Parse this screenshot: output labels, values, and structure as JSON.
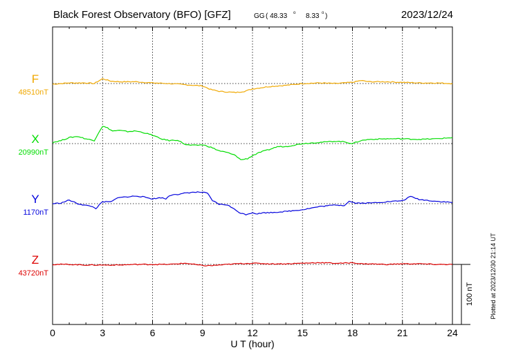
{
  "chart_data": {
    "type": "line",
    "title": "Black Forest Observatory (BFO)  [GFZ]",
    "coord_prefix": "GG",
    "coord_lat": "( 48.33",
    "coord_lon": "8.33",
    "degree_symbol": "o",
    "coord_close": ")",
    "date": "2023/12/24",
    "xlabel": "U T (hour)",
    "xlim": [
      0,
      24
    ],
    "xticks": [
      0,
      3,
      6,
      9,
      12,
      15,
      18,
      21,
      24
    ],
    "xtick_labels": [
      "0",
      "3",
      "6",
      "9",
      "12",
      "15",
      "18",
      "21",
      "24"
    ],
    "grid": true,
    "scale_bar_label": "100 nT",
    "scale_bar_nT": 100,
    "plotted_note": "Plotted at 2023/12/30 21:14 UT",
    "series": [
      {
        "name": "F",
        "baseline_label": "48510nT",
        "baseline_nT": 48510,
        "color": "#f0a800",
        "x": [
          0,
          1,
          2,
          2.5,
          3,
          3.5,
          4,
          5,
          6,
          7,
          8,
          8.5,
          9,
          9.5,
          10,
          10.5,
          11,
          11.5,
          12,
          13,
          14,
          15,
          16,
          17,
          18,
          18.5,
          19,
          20,
          21,
          22,
          23,
          24
        ],
        "y": [
          -1,
          1,
          1,
          0,
          8,
          4,
          3,
          3,
          1,
          0,
          -2,
          -3,
          -4,
          -10,
          -13,
          -14,
          -15,
          -13,
          -9,
          -5,
          -3,
          0,
          1,
          0,
          2,
          5,
          3,
          3,
          2,
          1,
          1,
          0
        ]
      },
      {
        "name": "X",
        "baseline_label": "20990nT",
        "baseline_nT": 20990,
        "color": "#00dd00",
        "x": [
          0,
          0.5,
          1,
          1.5,
          2,
          2.5,
          2.8,
          3,
          3.3,
          3.6,
          4,
          4.5,
          5,
          5.5,
          6,
          6.5,
          7,
          7.5,
          8,
          8.5,
          9,
          9.5,
          10,
          10.5,
          11,
          11.3,
          11.7,
          12,
          12.5,
          13,
          13.5,
          14,
          15,
          16,
          17,
          17.5,
          18,
          18.5,
          19,
          20,
          21,
          22,
          23,
          24
        ],
        "y": [
          2,
          5,
          10,
          12,
          8,
          5,
          20,
          29,
          26,
          21,
          22,
          20,
          21,
          18,
          14,
          8,
          5,
          6,
          -2,
          -3,
          -2,
          -6,
          -12,
          -15,
          -20,
          -27,
          -25,
          -20,
          -14,
          -10,
          -5,
          -5,
          0,
          2,
          4,
          3,
          0,
          5,
          7,
          8,
          8,
          7,
          8,
          10
        ]
      },
      {
        "name": "Y",
        "baseline_label": "1170nT",
        "baseline_nT": 1170,
        "color": "#0000dd",
        "x": [
          0,
          0.5,
          1,
          1.5,
          2,
          2.3,
          2.6,
          3,
          3.5,
          4,
          4.5,
          5,
          5.5,
          6,
          6.5,
          6.8,
          7,
          7.3,
          7.6,
          8,
          8.5,
          9,
          9.3,
          9.6,
          10,
          10.5,
          11,
          11.3,
          11.6,
          12,
          12.3,
          12.7,
          13,
          14,
          15,
          16,
          17,
          17.5,
          17.8,
          18.2,
          19,
          20,
          21,
          21.5,
          22,
          23,
          24
        ],
        "y": [
          0,
          1,
          6,
          0,
          -3,
          -4,
          -8,
          3,
          3,
          11,
          11,
          13,
          11,
          8,
          10,
          8,
          13,
          16,
          15,
          18,
          19,
          19,
          17,
          5,
          -1,
          -2,
          -11,
          -16,
          -18,
          -15,
          -17,
          -15,
          -15,
          -13,
          -10,
          -5,
          -2,
          -3,
          4,
          1,
          1,
          3,
          5,
          12,
          7,
          4,
          2
        ]
      },
      {
        "name": "Z",
        "baseline_label": "43720nT",
        "baseline_nT": 43720,
        "color": "#dd0000",
        "x": [
          0,
          1,
          2,
          3,
          4,
          5,
          6,
          7,
          8,
          8.5,
          9,
          9.5,
          10,
          10.5,
          11,
          12,
          13,
          14,
          15,
          16,
          17,
          17.5,
          18,
          18.5,
          19,
          20,
          21,
          22,
          23,
          24
        ],
        "y": [
          0,
          0,
          -1,
          -1,
          -1,
          0,
          0,
          0,
          2,
          0,
          -2,
          -2,
          -1,
          0,
          1,
          2,
          1,
          1,
          2,
          3,
          2,
          2,
          3,
          1,
          1,
          0,
          1,
          1,
          0,
          0
        ]
      }
    ]
  }
}
